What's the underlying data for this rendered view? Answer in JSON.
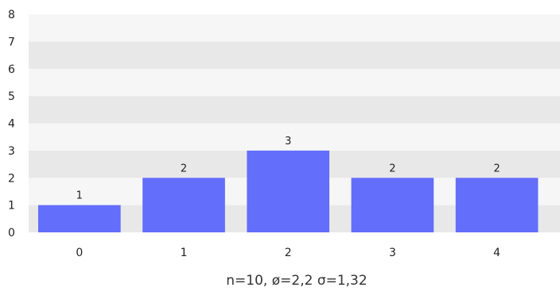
{
  "chart_data": {
    "type": "bar",
    "categories": [
      "0",
      "1",
      "2",
      "3",
      "4"
    ],
    "values": [
      1,
      2,
      3,
      2,
      2
    ],
    "data_labels": [
      "1",
      "2",
      "3",
      "2",
      "2"
    ],
    "y_ticks": [
      "0",
      "1",
      "2",
      "3",
      "4",
      "5",
      "6",
      "7",
      "8"
    ],
    "ylim": [
      0,
      8
    ],
    "title": "",
    "xlabel": "",
    "ylabel": "",
    "grid": "alternating horizontal bands",
    "legend": "none",
    "colors": {
      "bar": "#636efa",
      "band_dark": "#e8e8e8",
      "band_light": "#f6f6f6"
    }
  },
  "stats_text": "n=10, ø=2,2 σ=1,32"
}
